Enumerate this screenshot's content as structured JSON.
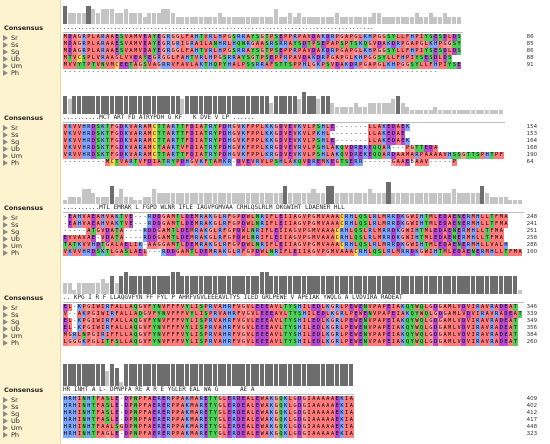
{
  "labels": {
    "consensus": "Consensus",
    "sequences": [
      "Sr",
      "Ss",
      "Sg",
      "Ub",
      "Um",
      "Ph"
    ]
  },
  "colors": {
    "hydrophobic": "#ff7a7a",
    "acidic": "#b44bd1",
    "basic": "#7da7ff",
    "polar": "#4ccf57",
    "cys": "#ffd24a",
    "gly": "#ff9a9a",
    "gap": "#ffffff"
  },
  "blocks": [
    {
      "consensus_text": "......................................................................................",
      "rows": [
        {
          "name": "Sr",
          "seq": "MDAGRPLARAAESVAMVEAYEGRGGLFAHTVRLHPGSRRAYSGTPSEPPRPAVDAKDRPGAPGLKHPGGSYLLFHPIYSESDLDS",
          "end": "86"
        },
        {
          "name": "Ss",
          "seq": "MDAGRPLARAAESVAMVEAYEGRGRIGRAILANHRLHQNRGAASRSRRAYSDTPSEPAPSPTSKQGVDAKDRPGAPGLKHPGGSY",
          "end": "85"
        },
        {
          "name": "Sg",
          "seq": "MDAGRPLARAAESVAMVDAYEGRGGLFAHTVRLHPGSRRAYSGTPSEPPRPAVDAKDRPGAPGLKHPGGSYLLFHPIYSESDLDS",
          "end": "86"
        },
        {
          "name": "Ub",
          "seq": "MTVCSPLVRAAGLVVEAYEGRGGLFAHTVRLHPGSRRAYSGTPSEPPRPAVDAKDRPGAPGLKHPGGSYLLFHPIYSESDLDS",
          "end": "88"
        },
        {
          "name": "Um",
          "seq": "MVVYTPTVNVMCEETAGSVAGRRVFAVLAKTHQPYHALPSSRRAFSTTSPPHLGKPSVDAKDRPGAPGLKHPGGSYLLFHPIYSE",
          "end": "91"
        },
        {
          "name": "Ph",
          "seq": "--------------------------------------------------------------------------------",
          "end": ""
        }
      ]
    },
    {
      "consensus_text": "..........MCT ART FD ATRYPDH G KF   K DVE V LP ......",
      "rows": [
        {
          "name": "Sr",
          "seq": "VKVVHRDSKTFGDKVARAMCTTARTTFDIATRYPDHGVKFPPLKKGDVEVKVLPSHLE-------LLAKEDAEK",
          "end": "154"
        },
        {
          "name": "Ss",
          "seq": "VKVVHRDSKTFGDKVARAMCTTARTTFDIATRYPDHGVKFPPLKKGDVEVKVLPKHL--------LLAKEDAE",
          "end": "153"
        },
        {
          "name": "Sg",
          "seq": "VKVVHRDSKTFGDKVARAMCTTARTTFDIATRYPDHGVKFPPLKKGDVEVKVLPSHLE-------LLAKEDAEK",
          "end": "164"
        },
        {
          "name": "Ub",
          "seq": "VKVVHRDSKTFGDKVARAMCTAARTVFDIATRYPDHGVKFPPLKRGDVEVRVLPSHLAKQVDREKEQQAR---PGTTEDA",
          "end": "168"
        },
        {
          "name": "Um",
          "seq": "VRVVHRDSKTFGDKVARAMCTTARTTFDIATRYPDHGVKFPPLKRGDVEVKVLPSHLAKQVDREKEQQARDAAMARPAAAAVHSSGTTSPHTPF",
          "end": "190"
        },
        {
          "name": "Ph",
          "seq": "---------MCTVARTVFDIATRYPDHGVKFTAMKR-DVEVRVLPSHLAKQVDREMKEGTSERR------GAAEBAAV-----P",
          "end": "64"
        }
      ]
    },
    {
      "consensus_text": "..........MTL EMRAK L FGPD WLNR IFLE IAGVPGMVAA CRHLQSLRLM DKGWIHT LDAENER HLL",
      "rows": [
        {
          "name": "Sr",
          "seq": "-EAHVAEAHVAKTVE---RDDGAMTLDEMRAKGLRFGPDWLNRIFLEIIAGVPGMVAAACRHLQSLRLMRRDKGWIHTMLEDAENERMHLLTFMA",
          "end": "248"
        },
        {
          "name": "Ss",
          "seq": "-EAHVAEAHVAKTVE---RDDGAMTLDEMRAKGLRFGPDWLNRIFLEIIAGVPGMVAAACRHLQSLRLMRRDKGWIHTMLEDAENERMHLLTFMA",
          "end": "241"
        },
        {
          "name": "Sg",
          "seq": "-----ATGVDATA----RDDGAMTLDEMRAKGLRFGPDWLNRIFLEIIAGVPGMVAAACRHLQSLRLMRRDKGWIHTMLEDAENERMHLLTFMA",
          "end": "251"
        },
        {
          "name": "Ub",
          "seq": "EVVAVAE-VDATA----RDDGAMTLDEMRAKGLRFGPDWLNRIFLEIIAGVPGMVAAACRHLQSLRLMRRDKGWIHTMLEDAENERMHLLTFMA",
          "end": "258"
        },
        {
          "name": "Um",
          "seq": "TATKVVHDTGALAELIK-AAGGAMTLDEMRAKGLRFGPDWLNRIFLEIIAGVPGMVAAACRHLQSLRLMRRDKGWIHTMLEDAENERMHLLVALH",
          "end": "286"
        },
        {
          "name": "Ph",
          "seq": "VKVVHRDSKTLGASLAEL---RDDGAMTLDEMRAKGLRFGPDWLNRIFLEIIAGVPGMVAAACRHLQSLRLMRRDKGWIHTMLEDAENERMHLLTFMA",
          "end": "160"
        }
      ]
    },
    {
      "consensus_text": ".. KPG I R F LLAQGVFYN FF FYL P AHRFVGVLEEEAVLTYS ILED GRLPEWE V APEIAK YWQLG A LVDVIRA RADEAT",
      "rows": [
        {
          "name": "Sr",
          "seq": "EL-KPGIWIRFALLAQGVFYNVFFFVYLISPRVAHRFVGVLEEEAVLTYSHILEDLKGRLPEWENVPAPEIAKQYWQLGDGAMLVDVIRAVRADEAT",
          "end": "346"
        },
        {
          "name": "Ss",
          "seq": "V--AKPGIWIRFALLAQGVFYNVFFFVYLISPRVAHRFVGVLEEEAVLTYSHILEDLKGRLPEWENVPAPEIAKQYWQLGDGAMLVDVIRAVRADEAT",
          "end": "339"
        },
        {
          "name": "Sg",
          "seq": "EL-KPGIWIRFALLAQGVFYNVFFFVYLISPRVAHRFVGVLEEEAVLTYSHILEDLKGRLPEWENVPAPEIAKQYWQLGDGAMLVDVIRAVRADEAT",
          "end": "349"
        },
        {
          "name": "Ub",
          "seq": "EL-KPGIWIRFALLAQGVFYNVFFFVYLISPRVAHRFVGVLEEEAVLTYSHILEDLKGRLPEWENVPAPEIAKQYWQLGDGAMLVDVIRAVRADEAT",
          "end": "356"
        },
        {
          "name": "Um",
          "seq": "MGRLNPGIRIFFLLAQGVFYNVFFFVYLISPRVAHRFVGVLEEEAVLTYSHILEDLKGRLPEWENVPAPEIAKQYWQLGDGAMLVDVIRAVRADEAT",
          "end": "384"
        },
        {
          "name": "Ph",
          "seq": "LGGGKPGLITFSLLAQGVFYNVFFFVYLISPRVAHRFVGVLEEEAVLTYSHILEDLKGRLPEWENVPAPEIAKQYWQLGDGAMLVDVIRAVRADEAT",
          "end": "260"
        }
      ]
    },
    {
      "consensus_text": "HR INHT A L- DPNPFA RE A R E YGLER EAL WA G      AE A",
      "rows": [
        {
          "name": "Sr",
          "seq": "HRHINHTFASLE-DPNPFAERERPPAKMARETYGLERDEALEWAKGQKLGDGIAAAAAEKIA",
          "end": "409"
        },
        {
          "name": "Ss",
          "seq": "HRHINHTFASLE-DPNPFAERERPPAKMARETYGLERDEALEWAKGQKLGDGIAAAAAEKIA",
          "end": "402"
        },
        {
          "name": "Sg",
          "seq": "HRHINHTFASLE-DPNPFAERERPPAKMARETYGLERDEALEWAKGQKLGDGIAAAAAEKIA",
          "end": "412"
        },
        {
          "name": "Ub",
          "seq": "HRHINHTFASLE-DPNPFAERERPPAKMARETYGLERDEALEWAKGQKLGDGIAAAAAEKIA",
          "end": "417"
        },
        {
          "name": "Um",
          "seq": "HRHINHTFAALSGDPNPFAERERPPAKMARETYGLERDEALEWAKGQKLGDGIAAAAAEKIA",
          "end": "448"
        },
        {
          "name": "Ph",
          "seq": "HRHINHTFAGLE-DPNPFAERERPPAKMARETYGLERDEALEWAKGQKLGDGIAAAAAEKIA",
          "end": "323"
        }
      ]
    }
  ]
}
